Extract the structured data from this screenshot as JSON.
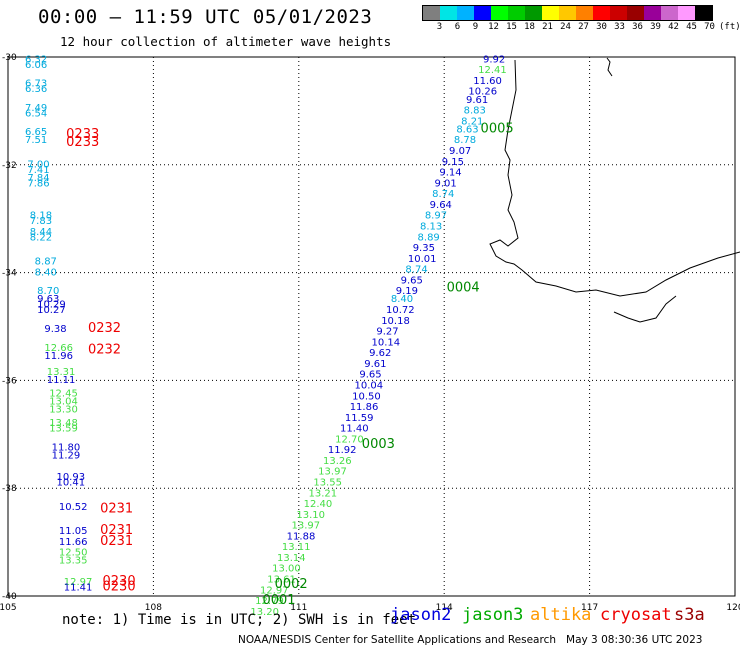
{
  "header": {
    "title": "00:00 – 11:59 UTC 05/01/2023",
    "subtitle": "12 hour collection of altimeter wave heights"
  },
  "colorbar": {
    "colors": [
      "#7f7f7f",
      "#00e5e5",
      "#00b2ff",
      "#0000ff",
      "#00ff00",
      "#00cc00",
      "#009900",
      "#ffff00",
      "#ffc800",
      "#ff8000",
      "#ff0000",
      "#cc0000",
      "#990000",
      "#990099",
      "#cc66cc",
      "#ff99ff",
      "#000000"
    ],
    "labels": [
      "3",
      "6",
      "9",
      "12",
      "15",
      "18",
      "21",
      "24",
      "27",
      "30",
      "33",
      "36",
      "39",
      "42",
      "45",
      "70",
      "(ft)"
    ]
  },
  "axes": {
    "lon_ticks": [
      "105",
      "108",
      "111",
      "114",
      "117",
      "120"
    ],
    "lat_ticks": [
      "-30",
      "-32",
      "-34",
      "-36",
      "-38",
      "-40"
    ]
  },
  "chart_data": {
    "type": "scatter",
    "x_range": [
      105,
      120
    ],
    "y_range": [
      -40,
      -30
    ],
    "color_scale_ft": {
      "cyan": [
        6,
        9
      ],
      "blue": [
        9,
        12
      ],
      "green": [
        12,
        15
      ]
    },
    "observations": [
      {
        "lon": 114.8,
        "lat": -30.1,
        "swh": "9.92",
        "color": "#0000cc"
      },
      {
        "lon": 114.7,
        "lat": -30.3,
        "swh": "12.41",
        "color": "#44dd44"
      },
      {
        "lon": 114.6,
        "lat": -30.5,
        "swh": "11.60",
        "color": "#0000cc"
      },
      {
        "lon": 114.5,
        "lat": -30.7,
        "swh": "10.26",
        "color": "#0000cc"
      },
      {
        "lon": 114.45,
        "lat": -30.85,
        "swh": "9.61",
        "color": "#0000cc"
      },
      {
        "lon": 114.4,
        "lat": -31.05,
        "swh": "8.83",
        "color": "#00aadd"
      },
      {
        "lon": 114.35,
        "lat": -31.25,
        "swh": "8.21",
        "color": "#00aadd"
      },
      {
        "lon": 114.25,
        "lat": -31.4,
        "swh": "8.63",
        "color": "#00aadd"
      },
      {
        "lon": 114.2,
        "lat": -31.6,
        "swh": "8.78",
        "color": "#00aadd"
      },
      {
        "lon": 114.1,
        "lat": -31.8,
        "swh": "9.07",
        "color": "#0000cc"
      },
      {
        "lon": 113.95,
        "lat": -32.0,
        "swh": "9.15",
        "color": "#0000cc"
      },
      {
        "lon": 113.9,
        "lat": -32.2,
        "swh": "9.14",
        "color": "#0000cc"
      },
      {
        "lon": 113.8,
        "lat": -32.4,
        "swh": "9.01",
        "color": "#0000cc"
      },
      {
        "lon": 113.75,
        "lat": -32.6,
        "swh": "8.74",
        "color": "#00aadd"
      },
      {
        "lon": 113.7,
        "lat": -32.8,
        "swh": "9.64",
        "color": "#0000cc"
      },
      {
        "lon": 113.6,
        "lat": -33.0,
        "swh": "8.97",
        "color": "#00aadd"
      },
      {
        "lon": 113.5,
        "lat": -33.2,
        "swh": "8.13",
        "color": "#00aadd"
      },
      {
        "lon": 113.45,
        "lat": -33.4,
        "swh": "8.89",
        "color": "#00aadd"
      },
      {
        "lon": 113.35,
        "lat": -33.6,
        "swh": "9.35",
        "color": "#0000cc"
      },
      {
        "lon": 113.25,
        "lat": -33.8,
        "swh": "10.01",
        "color": "#0000cc"
      },
      {
        "lon": 113.2,
        "lat": -34.0,
        "swh": "8.74",
        "color": "#00aadd"
      },
      {
        "lon": 113.1,
        "lat": -34.2,
        "swh": "9.65",
        "color": "#0000cc"
      },
      {
        "lon": 113.0,
        "lat": -34.4,
        "swh": "9.19",
        "color": "#0000cc"
      },
      {
        "lon": 112.9,
        "lat": -34.55,
        "swh": "8.40",
        "color": "#00aadd"
      },
      {
        "lon": 112.8,
        "lat": -34.75,
        "swh": "10.72",
        "color": "#0000cc"
      },
      {
        "lon": 112.7,
        "lat": -34.95,
        "swh": "10.18",
        "color": "#0000cc"
      },
      {
        "lon": 112.6,
        "lat": -35.15,
        "swh": "9.27",
        "color": "#0000cc"
      },
      {
        "lon": 112.5,
        "lat": -35.35,
        "swh": "10.14",
        "color": "#0000cc"
      },
      {
        "lon": 112.45,
        "lat": -35.55,
        "swh": "9.62",
        "color": "#0000cc"
      },
      {
        "lon": 112.35,
        "lat": -35.75,
        "swh": "9.61",
        "color": "#0000cc"
      },
      {
        "lon": 112.25,
        "lat": -35.95,
        "swh": "9.65",
        "color": "#0000cc"
      },
      {
        "lon": 112.15,
        "lat": -36.15,
        "swh": "10.04",
        "color": "#0000cc"
      },
      {
        "lon": 112.1,
        "lat": -36.35,
        "swh": "10.50",
        "color": "#0000cc"
      },
      {
        "lon": 112.05,
        "lat": -36.55,
        "swh": "11.86",
        "color": "#0000cc"
      },
      {
        "lon": 111.95,
        "lat": -36.75,
        "swh": "11.59",
        "color": "#0000cc"
      },
      {
        "lon": 111.85,
        "lat": -36.95,
        "swh": "11.40",
        "color": "#0000cc"
      },
      {
        "lon": 111.75,
        "lat": -37.15,
        "swh": "12.70",
        "color": "#44dd44"
      },
      {
        "lon": 111.6,
        "lat": -37.35,
        "swh": "11.92",
        "color": "#0000cc"
      },
      {
        "lon": 111.5,
        "lat": -37.55,
        "swh": "13.26",
        "color": "#44dd44"
      },
      {
        "lon": 111.4,
        "lat": -37.75,
        "swh": "13.97",
        "color": "#44dd44"
      },
      {
        "lon": 111.3,
        "lat": -37.95,
        "swh": "13.55",
        "color": "#44dd44"
      },
      {
        "lon": 111.2,
        "lat": -38.15,
        "swh": "13.21",
        "color": "#44dd44"
      },
      {
        "lon": 111.1,
        "lat": -38.35,
        "swh": "12.40",
        "color": "#44dd44"
      },
      {
        "lon": 110.95,
        "lat": -38.55,
        "swh": "13.10",
        "color": "#44dd44"
      },
      {
        "lon": 110.85,
        "lat": -38.75,
        "swh": "13.97",
        "color": "#44dd44"
      },
      {
        "lon": 110.75,
        "lat": -38.95,
        "swh": "11.88",
        "color": "#0000cc"
      },
      {
        "lon": 110.65,
        "lat": -39.15,
        "swh": "13.11",
        "color": "#44dd44"
      },
      {
        "lon": 110.55,
        "lat": -39.35,
        "swh": "13.14",
        "color": "#44dd44"
      },
      {
        "lon": 110.45,
        "lat": -39.55,
        "swh": "13.00",
        "color": "#44dd44"
      },
      {
        "lon": 110.35,
        "lat": -39.75,
        "swh": "13.61",
        "color": "#44dd44"
      },
      {
        "lon": 110.2,
        "lat": -39.95,
        "swh": "12.97",
        "color": "#44dd44"
      },
      {
        "lon": 110.1,
        "lat": -40.15,
        "swh": "12.79",
        "color": "#44dd44"
      },
      {
        "lon": 110.0,
        "lat": -40.35,
        "swh": "13.20",
        "color": "#44dd44"
      },
      {
        "lon": 105.35,
        "lat": -30.1,
        "swh": "6.32",
        "color": "#00aadd"
      },
      {
        "lon": 105.35,
        "lat": -30.2,
        "swh": "6.06",
        "color": "#00aadd"
      },
      {
        "lon": 105.35,
        "lat": -30.55,
        "swh": "6.73",
        "color": "#00aadd"
      },
      {
        "lon": 105.35,
        "lat": -30.65,
        "swh": "6.36",
        "color": "#00aadd"
      },
      {
        "lon": 105.35,
        "lat": -31.0,
        "swh": "7.49",
        "color": "#00aadd"
      },
      {
        "lon": 105.35,
        "lat": -31.1,
        "swh": "6.54",
        "color": "#00aadd"
      },
      {
        "lon": 105.35,
        "lat": -31.45,
        "swh": "6.65",
        "color": "#00aadd"
      },
      {
        "lon": 105.35,
        "lat": -31.6,
        "swh": "7.51",
        "color": "#00aadd"
      },
      {
        "lon": 105.4,
        "lat": -32.05,
        "swh": "7.00",
        "color": "#00aadd"
      },
      {
        "lon": 105.4,
        "lat": -32.15,
        "swh": "7.41",
        "color": "#00aadd"
      },
      {
        "lon": 105.4,
        "lat": -32.3,
        "swh": "7.84",
        "color": "#00aadd"
      },
      {
        "lon": 105.4,
        "lat": -32.4,
        "swh": "7.86",
        "color": "#00aadd"
      },
      {
        "lon": 105.45,
        "lat": -33.0,
        "swh": "8.18",
        "color": "#00aadd"
      },
      {
        "lon": 105.45,
        "lat": -33.1,
        "swh": "7.83",
        "color": "#00aadd"
      },
      {
        "lon": 105.45,
        "lat": -33.3,
        "swh": "8.44",
        "color": "#00aadd"
      },
      {
        "lon": 105.45,
        "lat": -33.4,
        "swh": "8.22",
        "color": "#00aadd"
      },
      {
        "lon": 105.55,
        "lat": -33.85,
        "swh": "8.87",
        "color": "#00aadd"
      },
      {
        "lon": 105.55,
        "lat": -34.05,
        "swh": "8.40",
        "color": "#00aadd"
      },
      {
        "lon": 105.6,
        "lat": -34.4,
        "swh": "8.70",
        "color": "#00aadd"
      },
      {
        "lon": 105.6,
        "lat": -34.55,
        "swh": "9.63",
        "color": "#0000cc"
      },
      {
        "lon": 105.6,
        "lat": -34.65,
        "swh": "10.29",
        "color": "#0000cc"
      },
      {
        "lon": 105.6,
        "lat": -34.75,
        "swh": "10.27",
        "color": "#0000cc"
      },
      {
        "lon": 105.75,
        "lat": -35.1,
        "swh": "9.38",
        "color": "#0000cc"
      },
      {
        "lon": 105.75,
        "lat": -35.45,
        "swh": "12.66",
        "color": "#44dd44"
      },
      {
        "lon": 105.75,
        "lat": -35.6,
        "swh": "11.96",
        "color": "#0000cc"
      },
      {
        "lon": 105.8,
        "lat": -35.9,
        "swh": "13.31",
        "color": "#44dd44"
      },
      {
        "lon": 105.8,
        "lat": -36.05,
        "swh": "11.11",
        "color": "#0000cc"
      },
      {
        "lon": 105.85,
        "lat": -36.3,
        "swh": "12.45",
        "color": "#44dd44"
      },
      {
        "lon": 105.85,
        "lat": -36.45,
        "swh": "13.04",
        "color": "#44dd44"
      },
      {
        "lon": 105.85,
        "lat": -36.6,
        "swh": "13.30",
        "color": "#44dd44"
      },
      {
        "lon": 105.85,
        "lat": -36.85,
        "swh": "13.48",
        "color": "#44dd44"
      },
      {
        "lon": 105.85,
        "lat": -36.95,
        "swh": "13.59",
        "color": "#44dd44"
      },
      {
        "lon": 105.9,
        "lat": -37.3,
        "swh": "11.80",
        "color": "#0000cc"
      },
      {
        "lon": 105.9,
        "lat": -37.45,
        "swh": "11.29",
        "color": "#0000cc"
      },
      {
        "lon": 106.0,
        "lat": -37.85,
        "swh": "10.93",
        "color": "#0000cc"
      },
      {
        "lon": 106.0,
        "lat": -37.95,
        "swh": "10.41",
        "color": "#0000cc"
      },
      {
        "lon": 106.05,
        "lat": -38.4,
        "swh": "10.52",
        "color": "#0000cc"
      },
      {
        "lon": 106.05,
        "lat": -38.85,
        "swh": "11.05",
        "color": "#0000cc"
      },
      {
        "lon": 106.05,
        "lat": -39.05,
        "swh": "11.66",
        "color": "#0000cc"
      },
      {
        "lon": 106.05,
        "lat": -39.25,
        "swh": "12.50",
        "color": "#44dd44"
      },
      {
        "lon": 106.05,
        "lat": -39.4,
        "swh": "13.35",
        "color": "#44dd44"
      },
      {
        "lon": 106.15,
        "lat": -39.8,
        "swh": "12.97",
        "color": "#44dd44"
      },
      {
        "lon": 106.15,
        "lat": -39.9,
        "swh": "11.41",
        "color": "#0000cc"
      }
    ],
    "pass_labels": [
      {
        "text": "0005",
        "lon": 114.75,
        "lat": -31.4,
        "color": "#008800"
      },
      {
        "text": "0004",
        "lon": 114.05,
        "lat": -34.35,
        "color": "#008800"
      },
      {
        "text": "0003",
        "lon": 112.3,
        "lat": -37.25,
        "color": "#008800"
      },
      {
        "text": "0002",
        "lon": 110.5,
        "lat": -39.85,
        "color": "#008800"
      },
      {
        "text": "0001",
        "lon": 110.25,
        "lat": -40.15,
        "color": "#008800"
      },
      {
        "text": "0233",
        "lon": 106.2,
        "lat": -31.5,
        "color": "#ee0000"
      },
      {
        "text": "0233",
        "lon": 106.2,
        "lat": -31.65,
        "color": "#ee0000"
      },
      {
        "text": "0232",
        "lon": 106.65,
        "lat": -35.1,
        "color": "#ee0000"
      },
      {
        "text": "0232",
        "lon": 106.65,
        "lat": -35.5,
        "color": "#ee0000"
      },
      {
        "text": "0231",
        "lon": 106.9,
        "lat": -38.45,
        "color": "#ee0000"
      },
      {
        "text": "0231",
        "lon": 106.9,
        "lat": -38.85,
        "color": "#ee0000"
      },
      {
        "text": "0231",
        "lon": 106.9,
        "lat": -39.05,
        "color": "#ee0000"
      },
      {
        "text": "0230",
        "lon": 106.95,
        "lat": -39.8,
        "color": "#ee0000"
      },
      {
        "text": "0230",
        "lon": 106.95,
        "lat": -39.9,
        "color": "#ee0000"
      }
    ]
  },
  "footer": {
    "note": "note: 1) Time is in UTC; 2) SWH is in feet",
    "missions": [
      {
        "name": "jason2",
        "color": "#0000dd"
      },
      {
        "name": "jason3",
        "color": "#00aa00"
      },
      {
        "name": "altika",
        "color": "#ff9900"
      },
      {
        "name": "cryosat",
        "color": "#ee0000"
      },
      {
        "name": "s3a",
        "color": "#990000"
      }
    ],
    "credit": "NOAA/NESDIS Center for Satellite Applications and Research",
    "generated": "May  3 08:30:36 UTC 2023"
  }
}
